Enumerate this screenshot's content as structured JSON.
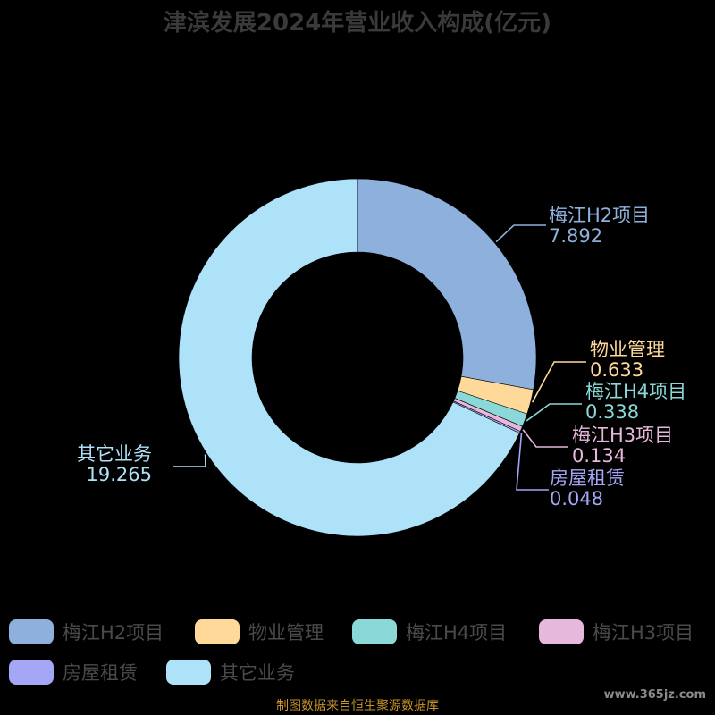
{
  "chart_data": {
    "type": "pie",
    "title": "津滨发展2024年营业收入构成(亿元)",
    "categories": [
      "梅江H2项目",
      "物业管理",
      "梅江H4项目",
      "梅江H3项目",
      "房屋租赁",
      "其它业务"
    ],
    "values": [
      7.892,
      0.633,
      0.338,
      0.134,
      0.048,
      19.265
    ],
    "value_labels": [
      "7.892",
      "0.633",
      "0.338",
      "0.134",
      "0.048",
      "19.265"
    ],
    "colors": [
      "#8eb0dc",
      "#ffd99a",
      "#8ad8d8",
      "#e6b8dc",
      "#a6a6f7",
      "#aee2f8"
    ],
    "donut": true,
    "legend": "bottom"
  },
  "source_text": "制图数据来自恒生聚源数据库",
  "watermark": "www.365jz.com"
}
